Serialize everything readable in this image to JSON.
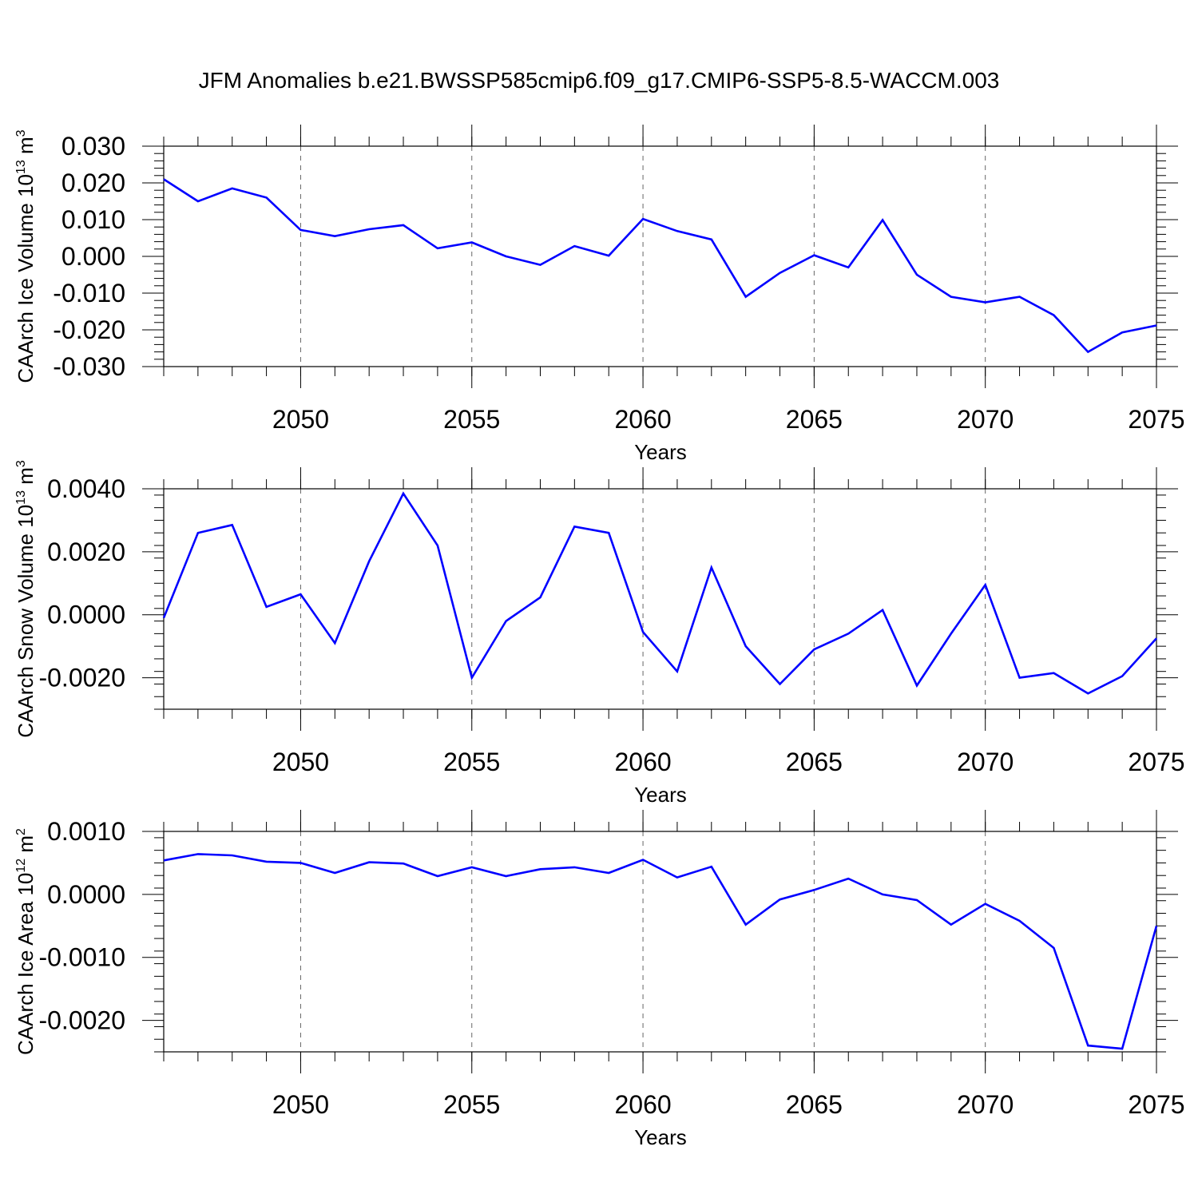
{
  "title": "JFM Anomalies b.e21.BWSSP585cmip6.f09_g17.CMIP6-SSP5-8.5-WACCM.003",
  "line_color": "#0000ff",
  "chart_data": [
    {
      "type": "line",
      "ylabel_main": "CAArch Ice Volume 10",
      "ylabel_exp": "13",
      "ylabel_unit": " m",
      "ylabel_unit_exp": "3",
      "xlabel": "Years",
      "xlim": [
        2046,
        2075
      ],
      "ylim": [
        -0.03,
        0.03
      ],
      "yticks": [
        0.03,
        0.02,
        0.01,
        0.0,
        -0.01,
        -0.02,
        -0.03
      ],
      "ytick_labels": [
        "0.030",
        "0.020",
        "0.010",
        "0.000",
        "-0.010",
        "-0.020",
        "-0.030"
      ],
      "xticks": [
        2050,
        2055,
        2060,
        2065,
        2070,
        2075
      ],
      "xtick_labels": [
        "2050",
        "2055",
        "2060",
        "2065",
        "2070",
        "2075"
      ],
      "grid": "vertical dashed at major x ticks",
      "x": [
        2046,
        2047,
        2048,
        2049,
        2050,
        2051,
        2052,
        2053,
        2054,
        2055,
        2056,
        2057,
        2058,
        2059,
        2060,
        2061,
        2062,
        2063,
        2064,
        2065,
        2066,
        2067,
        2068,
        2069,
        2070,
        2071,
        2072,
        2073,
        2074,
        2075
      ],
      "y": [
        0.021,
        0.015,
        0.0185,
        0.016,
        0.0072,
        0.0055,
        0.0074,
        0.0085,
        0.0022,
        0.0038,
        0.0,
        -0.0023,
        0.0028,
        0.0002,
        0.0102,
        0.0069,
        0.0046,
        -0.011,
        -0.0045,
        0.0003,
        -0.003,
        0.0099,
        -0.005,
        -0.011,
        -0.0125,
        -0.011,
        -0.016,
        -0.026,
        -0.0207,
        -0.0188
      ]
    },
    {
      "type": "line",
      "ylabel_main": "CAArch Snow Volume 10",
      "ylabel_exp": "13",
      "ylabel_unit": " m",
      "ylabel_unit_exp": "3",
      "xlabel": "Years",
      "xlim": [
        2046,
        2075
      ],
      "ylim": [
        -0.003,
        0.004
      ],
      "yticks": [
        0.004,
        0.002,
        0.0,
        -0.002
      ],
      "ytick_labels": [
        "0.0040",
        "0.0020",
        "0.0000",
        "-0.0020"
      ],
      "xticks": [
        2050,
        2055,
        2060,
        2065,
        2070,
        2075
      ],
      "xtick_labels": [
        "2050",
        "2055",
        "2060",
        "2065",
        "2070",
        "2075"
      ],
      "grid": "vertical dashed at major x ticks",
      "x": [
        2046,
        2047,
        2048,
        2049,
        2050,
        2051,
        2052,
        2053,
        2054,
        2055,
        2056,
        2057,
        2058,
        2059,
        2060,
        2061,
        2062,
        2063,
        2064,
        2065,
        2066,
        2067,
        2068,
        2069,
        2070,
        2071,
        2072,
        2073,
        2074,
        2075
      ],
      "y": [
        -0.0001,
        0.0026,
        0.00285,
        0.00025,
        0.00065,
        -0.0009,
        0.0017,
        0.00385,
        0.0022,
        -0.002,
        -0.0002,
        0.00055,
        0.0028,
        0.0026,
        -0.00055,
        -0.0018,
        0.0015,
        -0.001,
        -0.0022,
        -0.0011,
        -0.0006,
        0.00015,
        -0.00225,
        -0.0006,
        0.00095,
        -0.002,
        -0.00185,
        -0.0025,
        -0.00195,
        -0.00075
      ]
    },
    {
      "type": "line",
      "ylabel_main": "CAArch Ice Area 10",
      "ylabel_exp": "12",
      "ylabel_unit": " m",
      "ylabel_unit_exp": "2",
      "xlabel": "Years",
      "xlim": [
        2046,
        2075
      ],
      "ylim": [
        -0.0025,
        0.001
      ],
      "yticks": [
        0.001,
        0.0,
        -0.001,
        -0.002
      ],
      "ytick_labels": [
        "0.0010",
        "0.0000",
        "-0.0010",
        "-0.0020"
      ],
      "xticks": [
        2050,
        2055,
        2060,
        2065,
        2070,
        2075
      ],
      "xtick_labels": [
        "2050",
        "2055",
        "2060",
        "2065",
        "2070",
        "2075"
      ],
      "grid": "vertical dashed at major x ticks",
      "x": [
        2046,
        2047,
        2048,
        2049,
        2050,
        2051,
        2052,
        2053,
        2054,
        2055,
        2056,
        2057,
        2058,
        2059,
        2060,
        2061,
        2062,
        2063,
        2064,
        2065,
        2066,
        2067,
        2068,
        2069,
        2070,
        2071,
        2072,
        2073,
        2074,
        2075
      ],
      "y": [
        0.00054,
        0.00064,
        0.00062,
        0.00052,
        0.0005,
        0.00034,
        0.00051,
        0.00049,
        0.00029,
        0.00043,
        0.00029,
        0.0004,
        0.00043,
        0.00034,
        0.00055,
        0.00027,
        0.00044,
        -0.00048,
        -8e-05,
        7e-05,
        0.00025,
        0.0,
        -9e-05,
        -0.00048,
        -0.00015,
        -0.00042,
        -0.00085,
        -0.0024,
        -0.00245,
        -0.0005
      ]
    }
  ]
}
